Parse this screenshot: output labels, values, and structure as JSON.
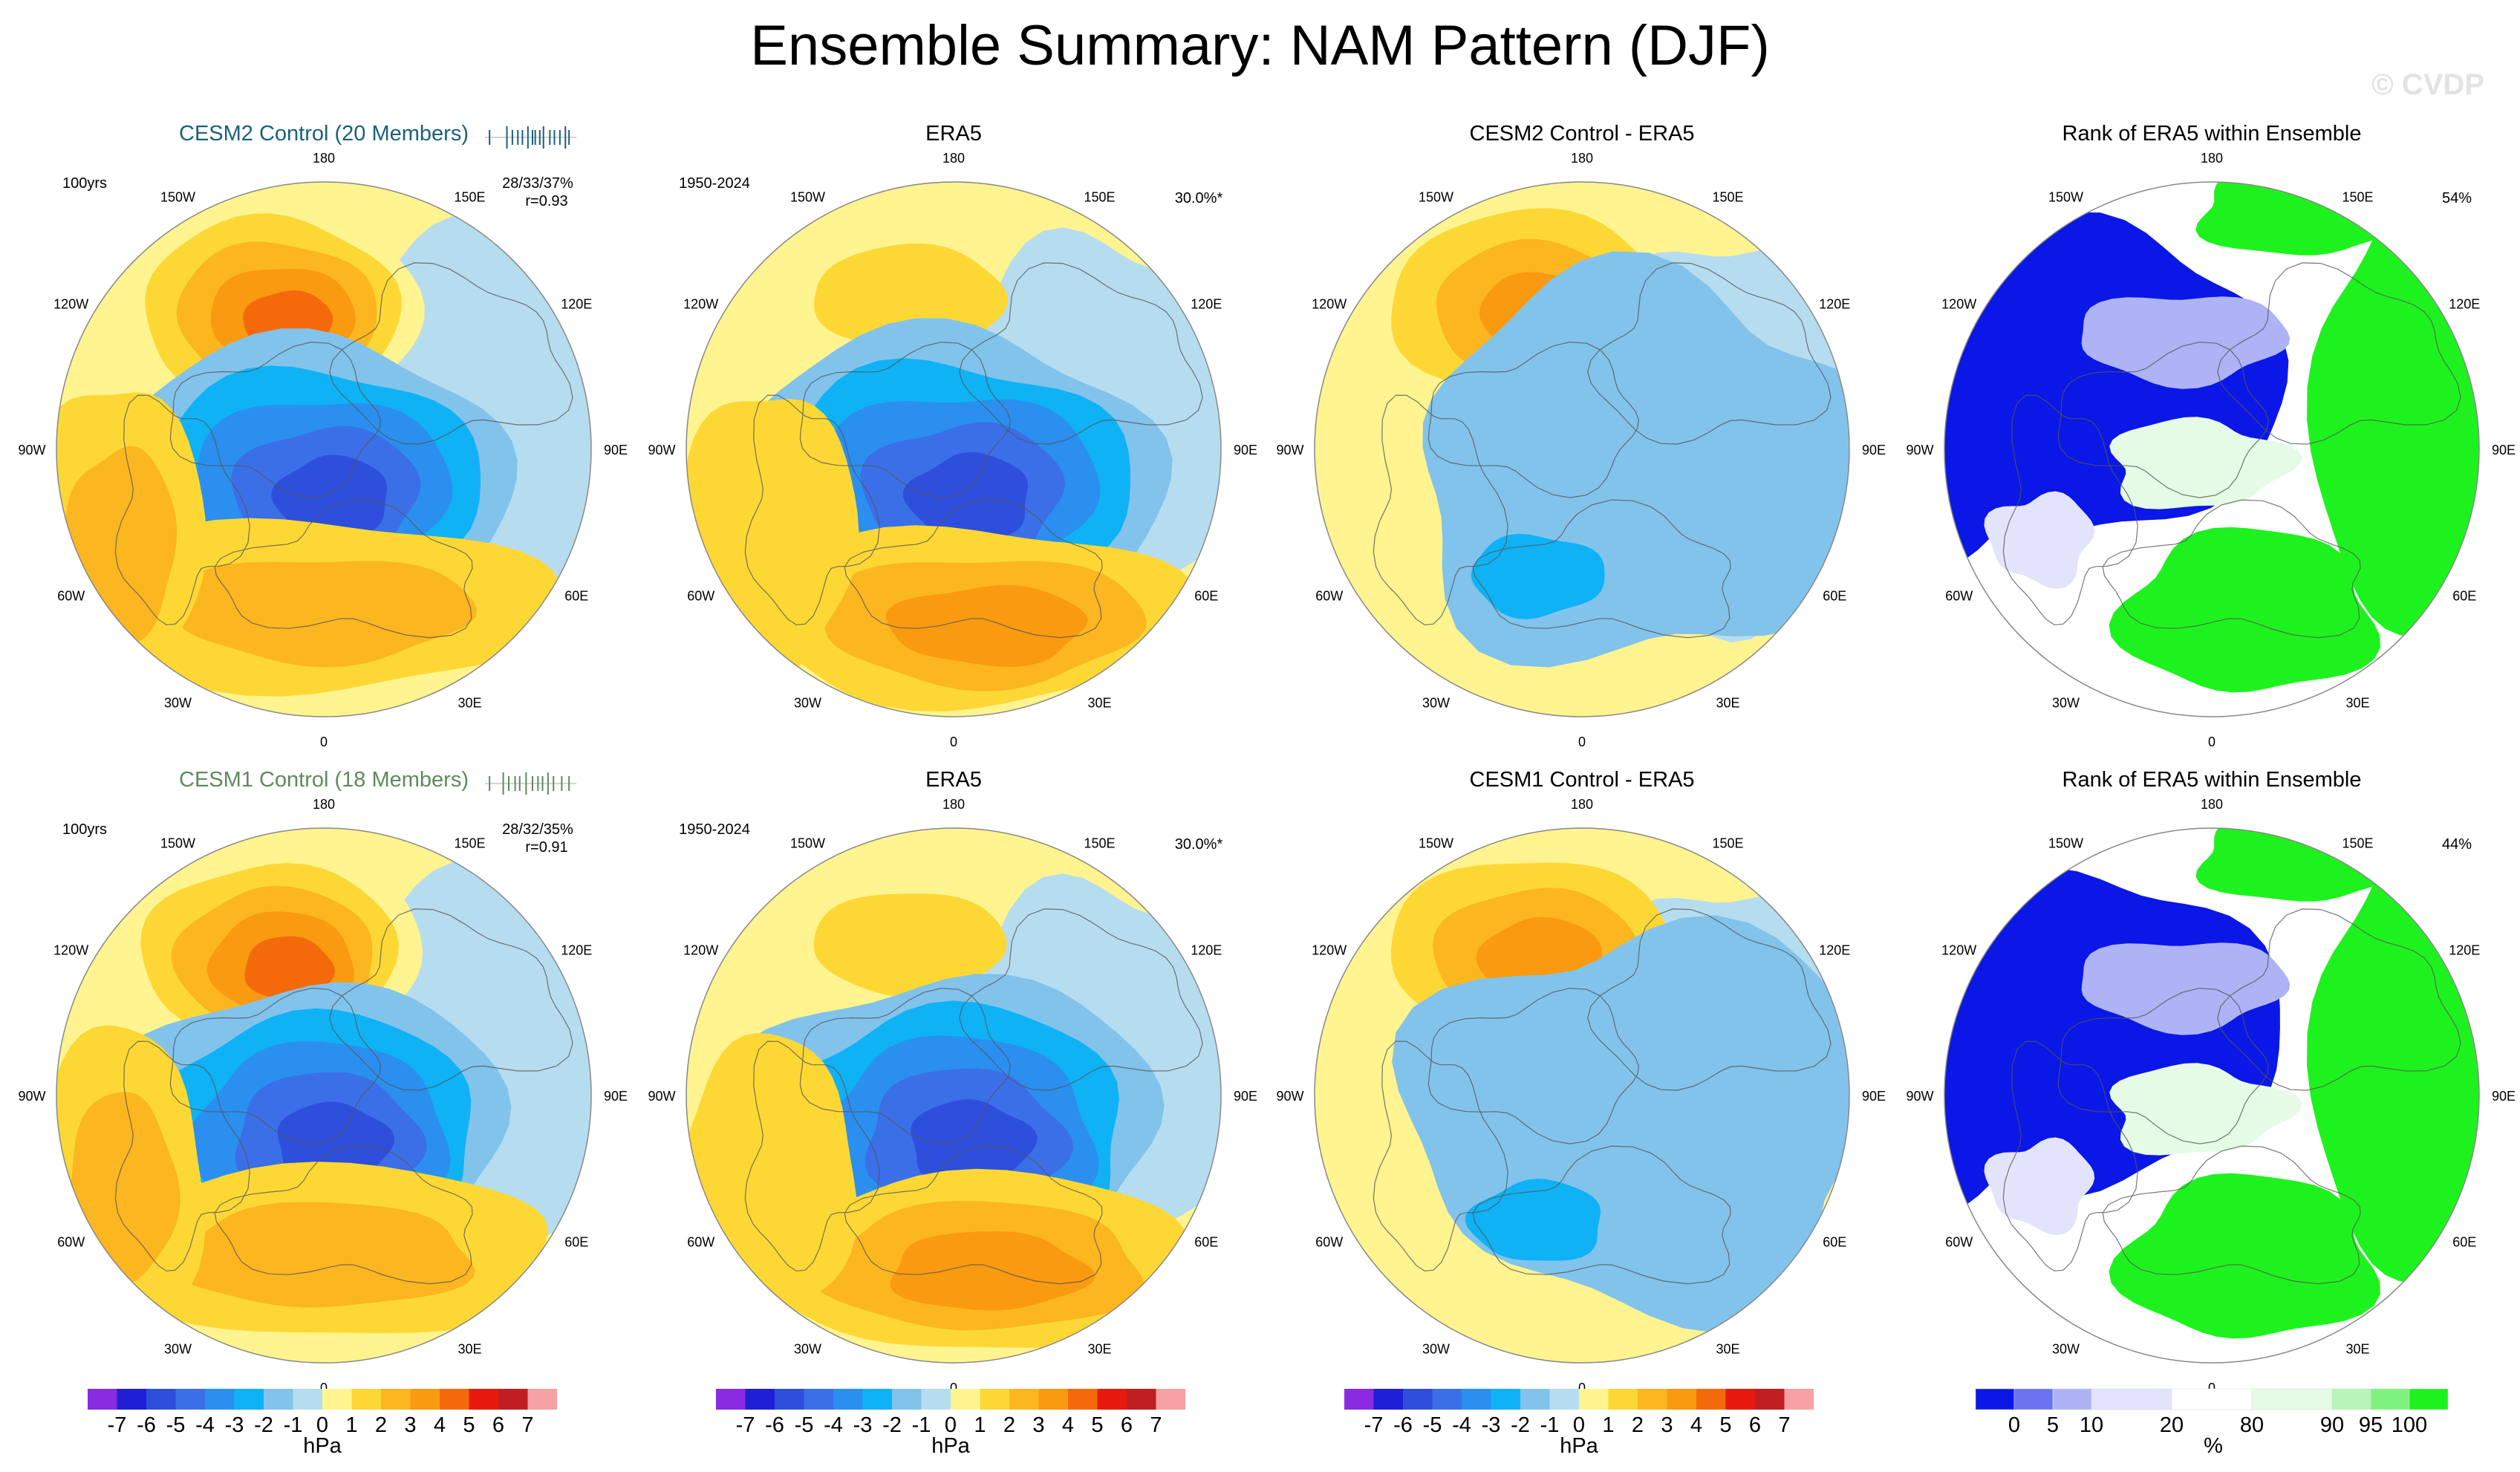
{
  "title": "Ensemble Summary: NAM Pattern (DJF)",
  "watermark": "© CVDP",
  "chart_data": {
    "type": "heatmap",
    "projection": "north-polar-stereographic",
    "variable": "NAM pattern (sea level pressure)",
    "season": "DJF",
    "lon_labels": [
      "180",
      "150E",
      "120E",
      "90E",
      "60E",
      "30E",
      "0",
      "30W",
      "60W",
      "90W",
      "120W",
      "150W"
    ],
    "rows": [
      {
        "panels": [
          {
            "kind": "ens",
            "title": "CESM2 Control (20 Members)",
            "title_color": "#1b5f7d",
            "left_note": "100yrs",
            "stats": "28/33/37%",
            "corr": "r=0.93",
            "ticks_color": "#1b5f7d",
            "member_ticks": [
              0.05,
              0.24,
              0.3,
              0.36,
              0.41,
              0.47,
              0.52,
              0.55,
              0.6,
              0.64,
              0.71,
              0.76,
              0.82,
              0.88,
              0.92
            ]
          },
          {
            "kind": "obs",
            "title": "ERA5",
            "left_note": "1950-2024",
            "right_note": "30.0%*"
          },
          {
            "kind": "diff",
            "title": "CESM2 Control - ERA5"
          },
          {
            "kind": "rank",
            "title": "Rank of ERA5 within Ensemble",
            "right_note": "54%"
          }
        ]
      },
      {
        "panels": [
          {
            "kind": "ens",
            "title": "CESM1 Control (18 Members)",
            "title_color": "#5e8a5e",
            "left_note": "100yrs",
            "stats": "28/32/35%",
            "corr": "r=0.91",
            "ticks_color": "#5e8a5e",
            "member_ticks": [
              0.05,
              0.2,
              0.26,
              0.33,
              0.38,
              0.45,
              0.52,
              0.58,
              0.63,
              0.69,
              0.75,
              0.84,
              0.92
            ]
          },
          {
            "kind": "obs",
            "title": "ERA5",
            "left_note": "1950-2024",
            "right_note": "30.0%*"
          },
          {
            "kind": "diff",
            "title": "CESM1 Control - ERA5"
          },
          {
            "kind": "rank",
            "title": "Rank of ERA5 within Ensemble",
            "right_note": "44%"
          }
        ]
      }
    ],
    "colorbar_hpa": {
      "unit": "hPa",
      "labels": [
        "-7",
        "-6",
        "-5",
        "-4",
        "-3",
        "-2",
        "-1",
        "0",
        "1",
        "2",
        "3",
        "4",
        "5",
        "6",
        "7"
      ],
      "colors": [
        "#8a2be2",
        "#1f1fd6",
        "#2e4fdb",
        "#3b6fe8",
        "#2b8fef",
        "#0fb2f5",
        "#82c3ec",
        "#b6ddef",
        "#fff490",
        "#fdd835",
        "#fcb620",
        "#f99a10",
        "#f46a0b",
        "#e8190f",
        "#c11e24",
        "#f6a2a4"
      ]
    },
    "colorbar_rank": {
      "unit": "%",
      "labels": [
        "0",
        "5",
        "10",
        "20",
        "80",
        "90",
        "95",
        "100"
      ],
      "colors": [
        "#0a17e6",
        "#6a72ef",
        "#aeb3f5",
        "#e2e4fb",
        "#ffffff",
        "#e5fbe5",
        "#b8f5b8",
        "#7ef27e",
        "#1ef21e"
      ]
    }
  }
}
